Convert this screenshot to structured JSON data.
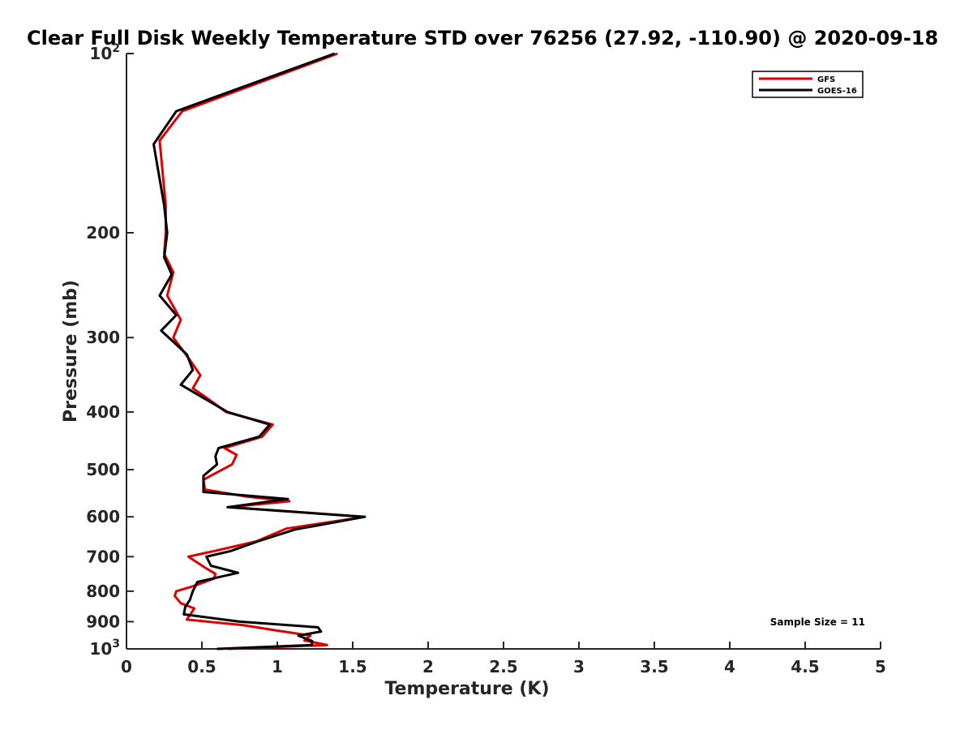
{
  "chart_data": {
    "type": "line",
    "title": "Clear Full Disk Weekly Temperature STD over 76256 (27.92, -110.90) @ 2020-09-18",
    "xlabel": "Temperature (K)",
    "ylabel": "Pressure (mb)",
    "xlim": [
      0,
      5
    ],
    "ylim": [
      100,
      1000
    ],
    "y_scale": "log",
    "y_reversed": true,
    "x_ticks": [
      "0",
      "0.5",
      "1",
      "1.5",
      "2",
      "2.5",
      "3",
      "3.5",
      "4",
      "4.5",
      "5"
    ],
    "y_ticks": [
      {
        "value": 100,
        "base": "10",
        "exp": "2"
      },
      {
        "value": 200,
        "label": "200"
      },
      {
        "value": 300,
        "label": "300"
      },
      {
        "value": 400,
        "label": "400"
      },
      {
        "value": 500,
        "label": "500"
      },
      {
        "value": 600,
        "label": "600"
      },
      {
        "value": 700,
        "label": "700"
      },
      {
        "value": 800,
        "label": "800"
      },
      {
        "value": 900,
        "label": "900"
      },
      {
        "value": 1000,
        "base": "10",
        "exp": "3"
      }
    ],
    "legend_position": "top-right",
    "grid": false,
    "series": [
      {
        "name": "GFS",
        "color": "#e00000",
        "points": [
          [
            1.4,
            100
          ],
          [
            0.37,
            125
          ],
          [
            0.22,
            140
          ],
          [
            0.26,
            180
          ],
          [
            0.26,
            200
          ],
          [
            0.25,
            217
          ],
          [
            0.31,
            233
          ],
          [
            0.27,
            255
          ],
          [
            0.36,
            280
          ],
          [
            0.31,
            300
          ],
          [
            0.42,
            327
          ],
          [
            0.49,
            347
          ],
          [
            0.44,
            365
          ],
          [
            0.54,
            380
          ],
          [
            0.66,
            400
          ],
          [
            0.97,
            420
          ],
          [
            0.9,
            440
          ],
          [
            0.65,
            460
          ],
          [
            0.73,
            472
          ],
          [
            0.7,
            490
          ],
          [
            0.57,
            510
          ],
          [
            0.51,
            520
          ],
          [
            0.52,
            540
          ],
          [
            0.8,
            555
          ],
          [
            1.08,
            565
          ],
          [
            0.68,
            578
          ],
          [
            1.58,
            600
          ],
          [
            1.06,
            628
          ],
          [
            0.86,
            660
          ],
          [
            0.58,
            685
          ],
          [
            0.41,
            700
          ],
          [
            0.52,
            730
          ],
          [
            0.59,
            748
          ],
          [
            0.58,
            762
          ],
          [
            0.44,
            785
          ],
          [
            0.33,
            800
          ],
          [
            0.32,
            815
          ],
          [
            0.36,
            838
          ],
          [
            0.45,
            855
          ],
          [
            0.43,
            870
          ],
          [
            0.4,
            893
          ],
          [
            0.77,
            912
          ],
          [
            0.98,
            930
          ],
          [
            1.22,
            950
          ],
          [
            1.18,
            968
          ],
          [
            1.33,
            985
          ],
          [
            0.67,
            1000
          ]
        ]
      },
      {
        "name": "GOES-16",
        "color": "#000000",
        "points": [
          [
            1.38,
            100
          ],
          [
            0.33,
            125
          ],
          [
            0.18,
            142
          ],
          [
            0.25,
            180
          ],
          [
            0.27,
            200
          ],
          [
            0.25,
            220
          ],
          [
            0.3,
            235
          ],
          [
            0.22,
            255
          ],
          [
            0.33,
            275
          ],
          [
            0.23,
            292
          ],
          [
            0.4,
            320
          ],
          [
            0.44,
            340
          ],
          [
            0.36,
            360
          ],
          [
            0.48,
            375
          ],
          [
            0.67,
            400
          ],
          [
            0.95,
            420
          ],
          [
            0.88,
            440
          ],
          [
            0.61,
            460
          ],
          [
            0.59,
            475
          ],
          [
            0.6,
            490
          ],
          [
            0.51,
            512
          ],
          [
            0.51,
            545
          ],
          [
            1.07,
            560
          ],
          [
            0.67,
            578
          ],
          [
            1.58,
            600
          ],
          [
            1.12,
            630
          ],
          [
            0.87,
            660
          ],
          [
            0.69,
            685
          ],
          [
            0.53,
            700
          ],
          [
            0.56,
            725
          ],
          [
            0.74,
            745
          ],
          [
            0.47,
            772
          ],
          [
            0.44,
            800
          ],
          [
            0.42,
            828
          ],
          [
            0.39,
            850
          ],
          [
            0.38,
            875
          ],
          [
            0.75,
            900
          ],
          [
            1.27,
            920
          ],
          [
            1.29,
            935
          ],
          [
            1.14,
            950
          ],
          [
            1.23,
            970
          ],
          [
            1.23,
            985
          ],
          [
            0.6,
            1000
          ]
        ]
      }
    ],
    "annotations": [
      {
        "text": "Sample Size = 11"
      }
    ]
  }
}
